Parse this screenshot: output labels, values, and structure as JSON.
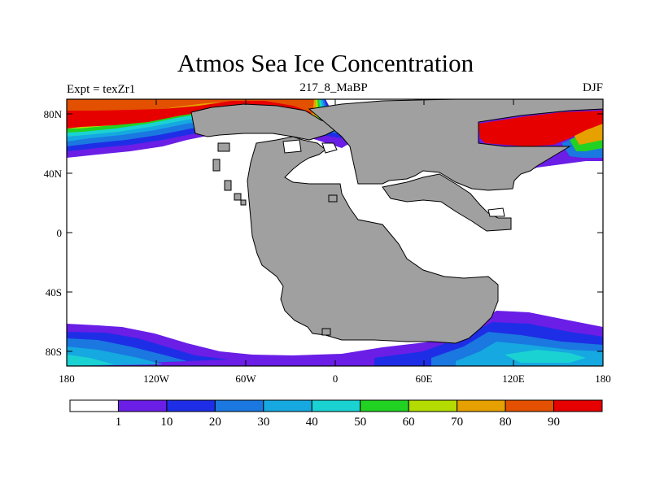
{
  "title": "Atmos Sea Ice Concentration",
  "experiment_label": "Expt = texZr1",
  "subtitle": "217_8_MaBP",
  "season": "DJF",
  "map": {
    "x_ticks": [
      "180",
      "120W",
      "60W",
      "0",
      "60E",
      "120E",
      "180"
    ],
    "y_ticks": [
      "80N",
      "40N",
      "0",
      "40S",
      "80S"
    ],
    "land_color": "#a0a0a0",
    "ocean_color": "#ffffff"
  },
  "colorbar": {
    "labels": [
      "1",
      "10",
      "20",
      "30",
      "40",
      "50",
      "60",
      "70",
      "80",
      "90"
    ],
    "colors": [
      "#ffffff",
      "#6a1ee6",
      "#1e2ee6",
      "#1a78e0",
      "#16a8e0",
      "#1ad2d2",
      "#22d222",
      "#b4dc00",
      "#e6a000",
      "#e25000",
      "#e60000"
    ]
  }
}
